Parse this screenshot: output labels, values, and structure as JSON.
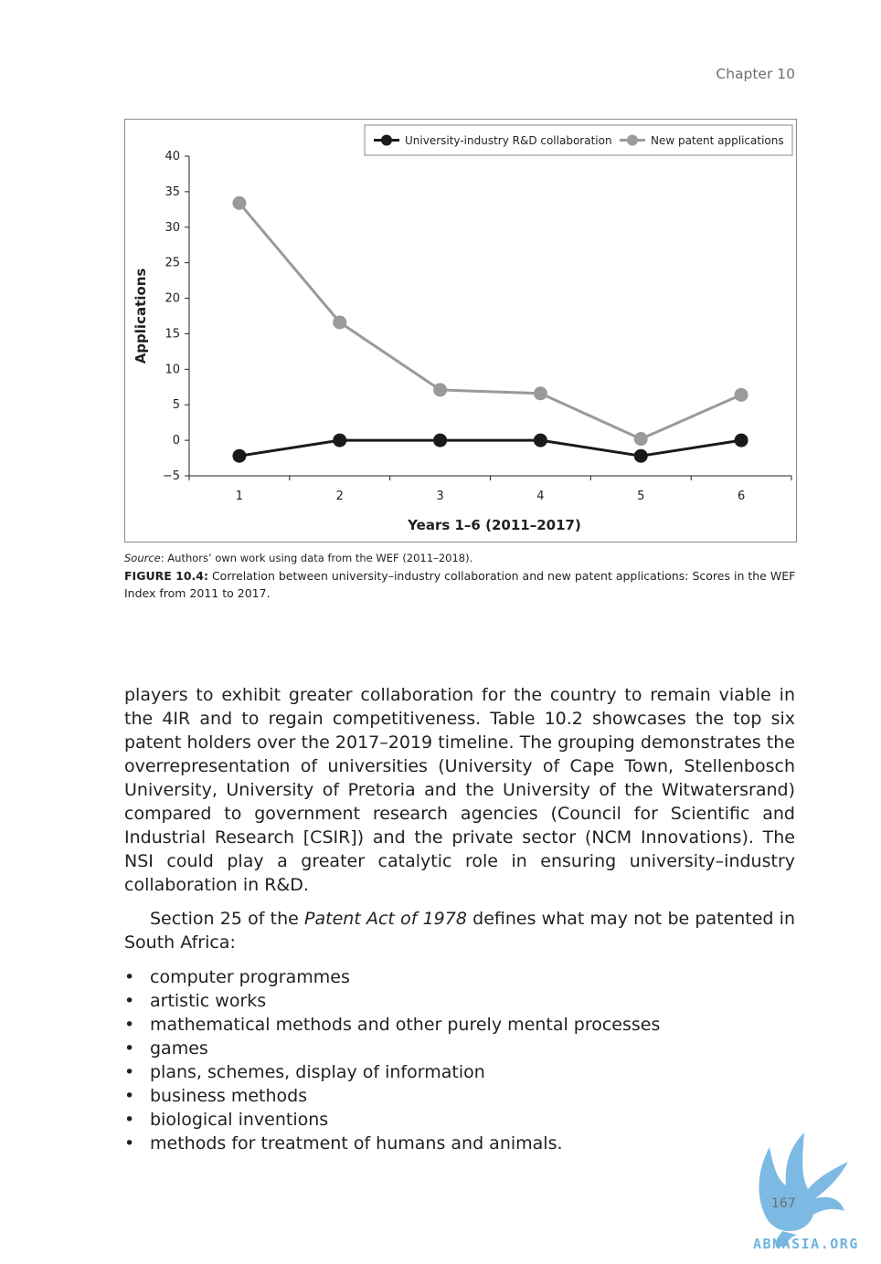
{
  "header": {
    "chapter": "Chapter 10"
  },
  "figure": {
    "source_label": "Source",
    "source_text": ": Authors’ own work using data from the WEF (2011–2018).",
    "label": "FIGURE 10.4:",
    "caption": " Correlation between university–industry collaboration and new patent applications: Scores in the WEF Index from 2011 to 2017."
  },
  "chart_data": {
    "type": "line",
    "x": [
      1,
      2,
      3,
      4,
      5,
      6
    ],
    "xticks": [
      "1",
      "2",
      "3",
      "4",
      "5",
      "6"
    ],
    "xlabel": "Years 1–6 (2011–2017)",
    "ylabel": "Applications",
    "ylim": [
      -5,
      40
    ],
    "yticks": [
      "−5",
      "0",
      "5",
      "10",
      "15",
      "20",
      "25",
      "30",
      "35",
      "40"
    ],
    "legend_position": "top-right",
    "grid": false,
    "series": [
      {
        "name": "University-industry R&D collaboration",
        "values": [
          -2.2,
          0,
          0,
          0,
          -2.2,
          0
        ],
        "color": "#1a1a1a"
      },
      {
        "name": "New patent applications",
        "values": [
          33.4,
          16.6,
          7.1,
          6.6,
          0.2,
          6.4
        ],
        "color": "#9a9a9a"
      }
    ]
  },
  "body": {
    "p1": "players to exhibit greater collaboration for the country to remain viable in the 4IR and to regain competitiveness. Table 10.2 showcases the top six patent holders over the 2017–2019 timeline. The grouping demonstrates the overrepresentation of universities (University of Cape Town, Stellenbosch University, University of Pretoria and the University of the Witwatersrand) compared to government research agencies (Council for Scientific and Industrial Research [CSIR]) and the private sector (NCM Innovations). The NSI could play a greater catalytic role in ensuring university–industry collaboration in R&D.",
    "p2_before": "Section 25 of the ",
    "p2_italic": "Patent Act of 1978",
    "p2_after": " defines what may not be patented in South Africa:",
    "bullets": [
      "computer programmes",
      "artistic works",
      "mathematical methods and other purely mental processes",
      "games",
      "plans, schemes, display of information",
      "business methods",
      "biological inventions",
      "methods for treatment of humans and animals."
    ]
  },
  "footer": {
    "page_number": "167"
  },
  "watermark": {
    "text": "ABNASIA.ORG",
    "color": "#6fb3e0"
  }
}
